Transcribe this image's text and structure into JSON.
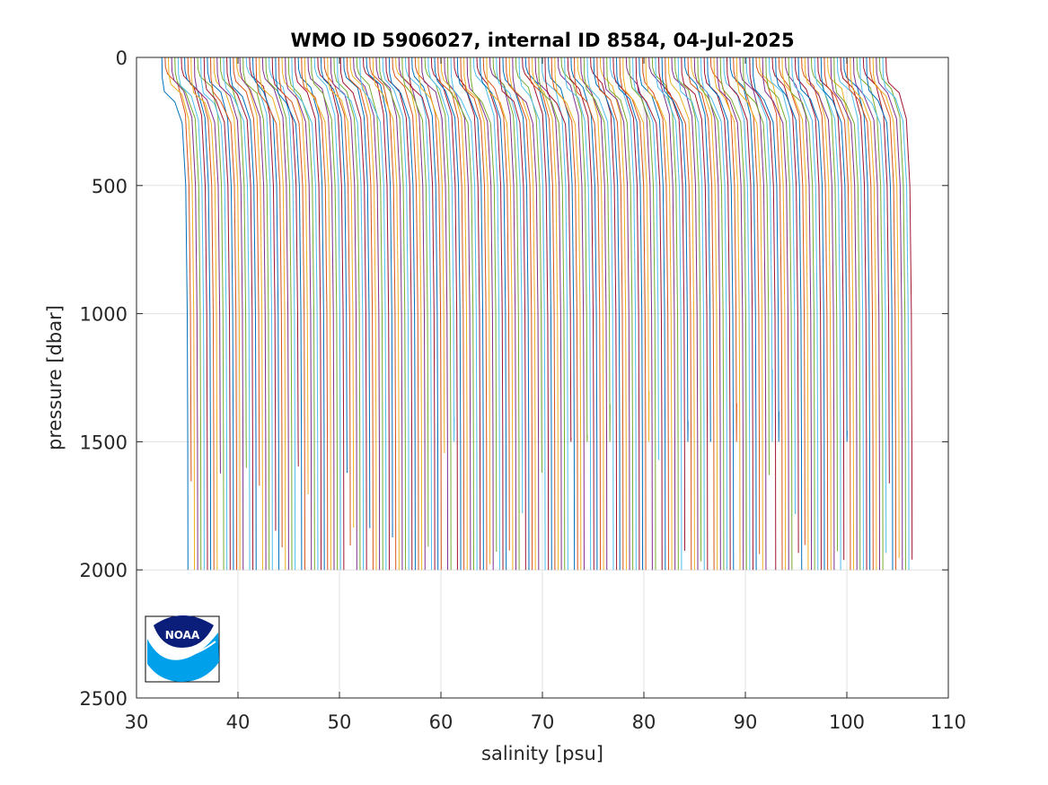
{
  "chart_data": {
    "type": "line",
    "title": "WMO ID 5906027, internal ID 8584, 04-Jul-2025",
    "xlabel": "salinity [psu]",
    "ylabel": "pressure [dbar]",
    "xlim": [
      30,
      110
    ],
    "ylim": [
      0,
      2500
    ],
    "y_reversed": true,
    "grid": true,
    "xticks": [
      30,
      40,
      50,
      60,
      70,
      80,
      90,
      100,
      110
    ],
    "yticks": [
      0,
      500,
      1000,
      1500,
      2000,
      2500
    ],
    "profiles": {
      "count": 224,
      "offset_step_psu": 0.32,
      "first_surface_salinity": 32.5,
      "first_deep_salinity": 35.0,
      "surface_pressure": 0,
      "max_pressure": 2000
    },
    "colors": [
      "#0072BD",
      "#D95319",
      "#EDB120",
      "#7E2F8E",
      "#77AC30",
      "#4DBEEE",
      "#A2142F"
    ]
  },
  "logo": {
    "text": "NOAA",
    "colors": {
      "dark": "#0a1e7a",
      "light": "#00a0ea"
    }
  }
}
